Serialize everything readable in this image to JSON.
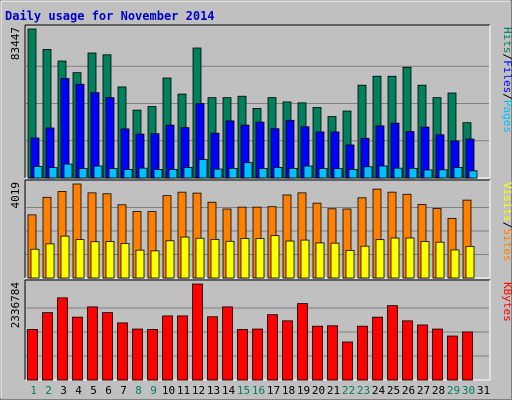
{
  "chart_data": {
    "type": "bar",
    "title": "Daily usage for November 2014",
    "categories": [
      "1",
      "2",
      "3",
      "4",
      "5",
      "6",
      "7",
      "8",
      "9",
      "10",
      "11",
      "12",
      "13",
      "14",
      "15",
      "16",
      "17",
      "18",
      "19",
      "20",
      "21",
      "22",
      "23",
      "24",
      "25",
      "26",
      "27",
      "28",
      "29",
      "30",
      "31"
    ],
    "weekend_days": [
      1,
      2,
      8,
      9,
      15,
      16,
      22,
      23,
      29,
      30
    ],
    "colors": {
      "hits": "#00805c",
      "files": "#0000ff",
      "pages": "#00c0ff",
      "visits": "#ff8000",
      "sites": "#ffff00",
      "kbytes": "#ff0000",
      "weekday_label": "#000000",
      "weekend_label": "#00805c",
      "title": "#0000c8",
      "separator": "#000000"
    },
    "panels": [
      {
        "id": "hits-files-pages",
        "ymax_label": "83447",
        "ymax": 83447,
        "legend": [
          {
            "text": "Pages",
            "color": "#00c0ff"
          },
          {
            "text": "/",
            "color": "#000000"
          },
          {
            "text": "Files",
            "color": "#0000ff"
          },
          {
            "text": "/",
            "color": "#000000"
          },
          {
            "text": "Hits",
            "color": "#00805c"
          }
        ],
        "series": [
          {
            "name": "Hits",
            "color": "#00805c",
            "values": [
              83447,
              72000,
              65500,
              59000,
              70000,
              69000,
              51000,
              38000,
              40000,
              56000,
              47000,
              72800,
              45000,
              45000,
              45800,
              39000,
              45000,
              42600,
              42100,
              39500,
              34400,
              37500,
              52000,
              57000,
              57000,
              62000,
              52000,
              45000,
              47600,
              31000,
              0
            ]
          },
          {
            "name": "Files",
            "color": "#0000ff",
            "values": [
              22400,
              28000,
              55700,
              52500,
              47800,
              45000,
              27500,
              24600,
              24800,
              29600,
              28200,
              41700,
              25100,
              32000,
              29600,
              31300,
              27600,
              32300,
              28700,
              25800,
              25800,
              18500,
              22200,
              29200,
              30700,
              26000,
              28500,
              24200,
              20800,
              21800,
              0
            ]
          },
          {
            "name": "Pages",
            "color": "#00c0ff",
            "values": [
              6500,
              5800,
              7800,
              5300,
              6700,
              5300,
              4800,
              5500,
              4800,
              4800,
              5900,
              10300,
              5000,
              5400,
              8600,
              5300,
              5900,
              5400,
              6700,
              5300,
              5300,
              4800,
              6300,
              6700,
              5500,
              5400,
              4500,
              4600,
              5900,
              4000,
              0
            ]
          }
        ]
      },
      {
        "id": "visits-sites",
        "ymax_label": "4019",
        "ymax": 4019,
        "legend": [
          {
            "text": "Sites",
            "color": "#ff8000"
          },
          {
            "text": "/",
            "color": "#000000"
          },
          {
            "text": "Visits",
            "color": "#ffff00"
          }
        ],
        "series": [
          {
            "name": "Visits",
            "color": "#ff8000",
            "values": [
              2700,
              3450,
              3700,
              4019,
              3640,
              3600,
              3130,
              2840,
              2840,
              3520,
              3670,
              3630,
              3240,
              2950,
              3030,
              3030,
              3050,
              3550,
              3640,
              3200,
              2960,
              2950,
              3430,
              3800,
              3670,
              3580,
              3140,
              2970,
              2550,
              3330,
              0
            ]
          },
          {
            "name": "Sites",
            "color": "#ffff00",
            "values": [
              1230,
              1460,
              1790,
              1640,
              1550,
              1560,
              1480,
              1190,
              1160,
              1590,
              1750,
              1700,
              1650,
              1570,
              1690,
              1690,
              1810,
              1580,
              1620,
              1500,
              1490,
              1180,
              1360,
              1640,
              1710,
              1710,
              1560,
              1530,
              1200,
              1350,
              0
            ]
          }
        ]
      },
      {
        "id": "kbytes",
        "ymax_label": "2336784",
        "ymax": 2336784,
        "legend": [
          {
            "text": "KBytes",
            "color": "#ff0000"
          }
        ],
        "series": [
          {
            "name": "KBytes",
            "color": "#ff0000",
            "values": [
              1230000,
              1640000,
              2000000,
              1530000,
              1780000,
              1640000,
              1390000,
              1240000,
              1230000,
              1560000,
              1560000,
              2336784,
              1540000,
              1780000,
              1230000,
              1240000,
              1590000,
              1440000,
              1860000,
              1310000,
              1320000,
              925000,
              1310000,
              1530000,
              1810000,
              1440000,
              1340000,
              1240000,
              1070000,
              1170000,
              0
            ]
          }
        ]
      }
    ]
  }
}
